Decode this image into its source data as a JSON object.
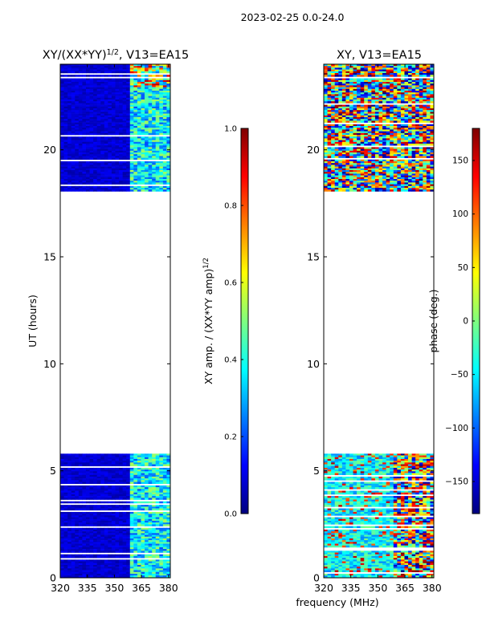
{
  "figure": {
    "suptitle": "2023-02-25 0.0-24.0",
    "xlabel": "frequency (MHz)"
  },
  "colors": {
    "no_data": "#ffffff",
    "frame": "#000000"
  },
  "chart_data": [
    {
      "type": "heatmap",
      "title_main": "XY/(XX*YY)",
      "title_sup": "1/2",
      "title_tail": ", V13=EA15",
      "xlabel": "",
      "ylabel": "UT (hours)",
      "xlim": [
        320,
        381
      ],
      "ylim": [
        0,
        24
      ],
      "xticks": [
        320,
        335,
        350,
        365,
        380
      ],
      "yticks": [
        0,
        5,
        10,
        15,
        20
      ],
      "data_ranges_hours": [
        [
          0,
          5.8
        ],
        [
          18.1,
          24
        ]
      ],
      "high_amplitude_band_mhz": [
        359,
        381
      ],
      "colorbar": {
        "label_main": "XY amp. / (XX*YY amp)",
        "label_sup": "1/2",
        "range": [
          0.0,
          1.0
        ],
        "ticks": [
          "0.0",
          "0.2",
          "0.4",
          "0.6",
          "0.8",
          "1.0"
        ],
        "colormap": "jet"
      }
    },
    {
      "type": "heatmap",
      "title_main": "XY, V13=EA15",
      "title_sup": "",
      "title_tail": "",
      "xlabel": "",
      "ylabel": "",
      "xlim": [
        320,
        381
      ],
      "ylim": [
        0,
        24
      ],
      "xticks": [
        320,
        335,
        350,
        365,
        380
      ],
      "yticks": [
        0,
        5,
        10,
        15,
        20
      ],
      "data_ranges_hours": [
        [
          0,
          5.8
        ],
        [
          18.1,
          24
        ]
      ],
      "colorbar": {
        "label_main": "phase (deg.)",
        "label_sup": "",
        "range": [
          -180,
          180
        ],
        "ticks": [
          "−150",
          "−100",
          "−50",
          "0",
          "50",
          "100",
          "150"
        ],
        "tick_values": [
          -150,
          -100,
          -50,
          0,
          50,
          100,
          150
        ],
        "colormap": "jet"
      }
    }
  ]
}
